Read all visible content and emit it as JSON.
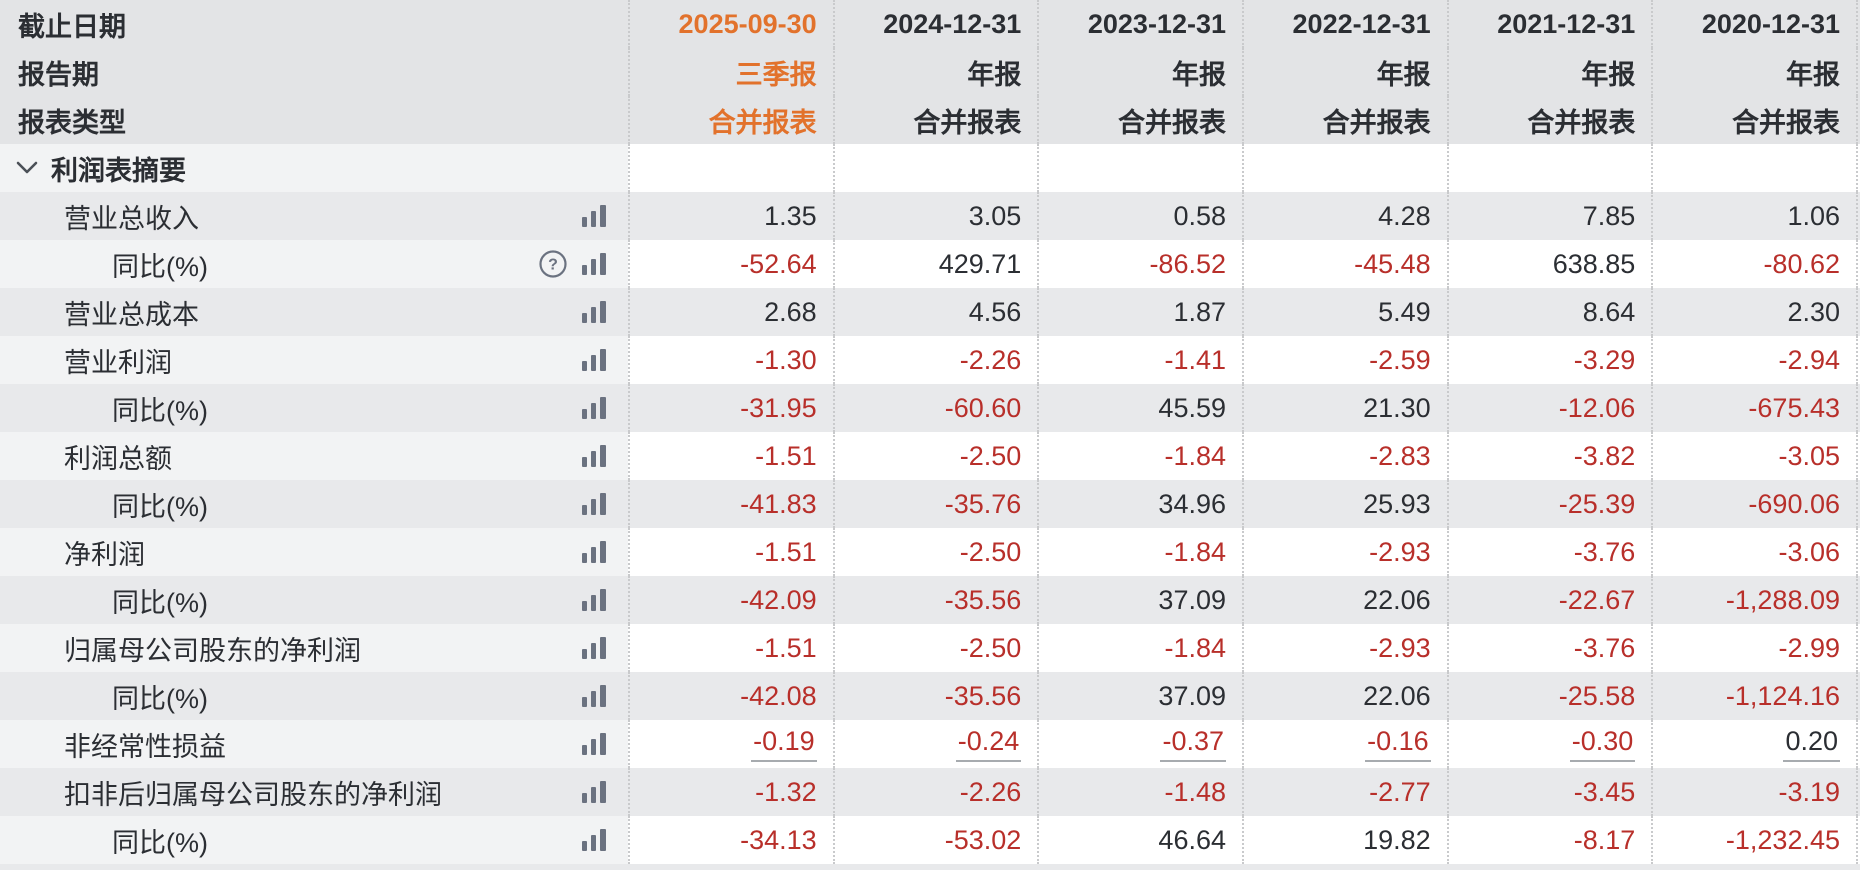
{
  "colors": {
    "accent_orange": "#e2722c",
    "negative_red": "#b82f2a",
    "text_dark": "#2b2e33",
    "header_bg": "#e3e4e6",
    "stripe_gray": "#e8e9eb",
    "icon_gray": "#6b7280"
  },
  "header": {
    "row_labels": {
      "date": "截止日期",
      "period": "报告期",
      "type": "报表类型"
    },
    "columns": [
      {
        "date": "2025-09-30",
        "period": "三季报",
        "type": "合并报表",
        "highlight": true
      },
      {
        "date": "2024-12-31",
        "period": "年报",
        "type": "合并报表",
        "highlight": false
      },
      {
        "date": "2023-12-31",
        "period": "年报",
        "type": "合并报表",
        "highlight": false
      },
      {
        "date": "2022-12-31",
        "period": "年报",
        "type": "合并报表",
        "highlight": false
      },
      {
        "date": "2021-12-31",
        "period": "年报",
        "type": "合并报表",
        "highlight": false
      },
      {
        "date": "2020-12-31",
        "period": "年报",
        "type": "合并报表",
        "highlight": false
      }
    ]
  },
  "section": {
    "label": "利润表摘要",
    "collapsed": false
  },
  "icons": {
    "bar": "bar-chart-icon",
    "help": "help-icon",
    "chevron": "chevron-down-icon"
  },
  "rows": [
    {
      "label": "营业总收入",
      "level": 1,
      "help": false,
      "underline": false,
      "values": [
        "1.35",
        "3.05",
        "0.58",
        "4.28",
        "7.85",
        "1.06"
      ]
    },
    {
      "label": "同比(%)",
      "level": 2,
      "help": true,
      "underline": false,
      "values": [
        "-52.64",
        "429.71",
        "-86.52",
        "-45.48",
        "638.85",
        "-80.62"
      ]
    },
    {
      "label": "营业总成本",
      "level": 1,
      "help": false,
      "underline": false,
      "values": [
        "2.68",
        "4.56",
        "1.87",
        "5.49",
        "8.64",
        "2.30"
      ]
    },
    {
      "label": "营业利润",
      "level": 1,
      "help": false,
      "underline": false,
      "values": [
        "-1.30",
        "-2.26",
        "-1.41",
        "-2.59",
        "-3.29",
        "-2.94"
      ]
    },
    {
      "label": "同比(%)",
      "level": 2,
      "help": false,
      "underline": false,
      "values": [
        "-31.95",
        "-60.60",
        "45.59",
        "21.30",
        "-12.06",
        "-675.43"
      ]
    },
    {
      "label": "利润总额",
      "level": 1,
      "help": false,
      "underline": false,
      "values": [
        "-1.51",
        "-2.50",
        "-1.84",
        "-2.83",
        "-3.82",
        "-3.05"
      ]
    },
    {
      "label": "同比(%)",
      "level": 2,
      "help": false,
      "underline": false,
      "values": [
        "-41.83",
        "-35.76",
        "34.96",
        "25.93",
        "-25.39",
        "-690.06"
      ]
    },
    {
      "label": "净利润",
      "level": 1,
      "help": false,
      "underline": false,
      "values": [
        "-1.51",
        "-2.50",
        "-1.84",
        "-2.93",
        "-3.76",
        "-3.06"
      ]
    },
    {
      "label": "同比(%)",
      "level": 2,
      "help": false,
      "underline": false,
      "values": [
        "-42.09",
        "-35.56",
        "37.09",
        "22.06",
        "-22.67",
        "-1,288.09"
      ]
    },
    {
      "label": "归属母公司股东的净利润",
      "level": 1,
      "help": false,
      "underline": false,
      "values": [
        "-1.51",
        "-2.50",
        "-1.84",
        "-2.93",
        "-3.76",
        "-2.99"
      ]
    },
    {
      "label": "同比(%)",
      "level": 2,
      "help": false,
      "underline": false,
      "values": [
        "-42.08",
        "-35.56",
        "37.09",
        "22.06",
        "-25.58",
        "-1,124.16"
      ]
    },
    {
      "label": "非经常性损益",
      "level": 1,
      "help": false,
      "underline": true,
      "values": [
        "-0.19",
        "-0.24",
        "-0.37",
        "-0.16",
        "-0.30",
        "0.20"
      ]
    },
    {
      "label": "扣非后归属母公司股东的净利润",
      "level": 1,
      "help": false,
      "underline": false,
      "values": [
        "-1.32",
        "-2.26",
        "-1.48",
        "-2.77",
        "-3.45",
        "-3.19"
      ]
    },
    {
      "label": "同比(%)",
      "level": 2,
      "help": false,
      "underline": false,
      "values": [
        "-34.13",
        "-53.02",
        "46.64",
        "19.82",
        "-8.17",
        "-1,232.45"
      ]
    }
  ]
}
